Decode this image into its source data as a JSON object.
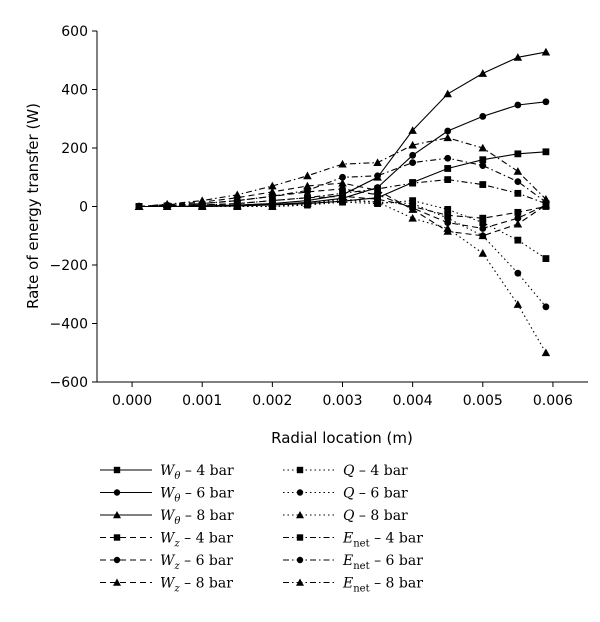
{
  "chart_data": {
    "type": "line",
    "title": "",
    "xlabel": "Radial location (m)",
    "ylabel": "Rate of energy transfer (W)",
    "xlim": [
      -0.0005,
      0.0065
    ],
    "ylim": [
      -600,
      600
    ],
    "x_ticks": [
      "0.000",
      "0.001",
      "0.002",
      "0.003",
      "0.004",
      "0.005",
      "0.006"
    ],
    "x_tick_values": [
      0,
      0.001,
      0.002,
      0.003,
      0.004,
      0.005,
      0.006
    ],
    "y_ticks": [
      "600",
      "400",
      "200",
      "0",
      "−200",
      "−400",
      "−600"
    ],
    "y_tick_values": [
      600,
      400,
      200,
      0,
      -200,
      -400,
      -600
    ],
    "grid": false,
    "legend_placement": "bottom",
    "series": [
      {
        "name": "W_θ – 4 bar",
        "sym": "W",
        "sub": "θ",
        "label": "– 4 bar",
        "dash": "solid",
        "marker": "square",
        "x": [
          0.0001,
          0.0005,
          0.001,
          0.0015,
          0.002,
          0.0025,
          0.003,
          0.0035,
          0.004,
          0.0045,
          0.005,
          0.0055,
          0.0059
        ],
        "y": [
          0,
          0,
          0,
          2,
          5,
          10,
          18,
          30,
          82,
          130,
          160,
          180,
          187
        ]
      },
      {
        "name": "W_θ – 6 bar",
        "sym": "W",
        "sub": "θ",
        "label": "– 6 bar",
        "dash": "solid",
        "marker": "circle",
        "x": [
          0.0001,
          0.0005,
          0.001,
          0.0015,
          0.002,
          0.0025,
          0.003,
          0.0035,
          0.004,
          0.0045,
          0.005,
          0.0055,
          0.0059
        ],
        "y": [
          0,
          0,
          0,
          3,
          7,
          14,
          28,
          65,
          175,
          258,
          308,
          347,
          358
        ]
      },
      {
        "name": "W_θ – 8 bar",
        "sym": "W",
        "sub": "θ",
        "label": "– 8 bar",
        "dash": "solid",
        "marker": "triangle",
        "x": [
          0.0001,
          0.0005,
          0.001,
          0.0015,
          0.002,
          0.0025,
          0.003,
          0.0035,
          0.004,
          0.0045,
          0.005,
          0.0055,
          0.0059
        ],
        "y": [
          0,
          0,
          2,
          5,
          10,
          20,
          40,
          100,
          260,
          385,
          455,
          510,
          528
        ]
      },
      {
        "name": "W_z – 4 bar",
        "sym": "W",
        "sub": "z",
        "label": "– 4 bar",
        "dash": "dash",
        "marker": "square",
        "x": [
          0.0001,
          0.0005,
          0.001,
          0.0015,
          0.002,
          0.0025,
          0.003,
          0.0035,
          0.004,
          0.0045,
          0.005,
          0.0055,
          0.0059
        ],
        "y": [
          0,
          2,
          5,
          10,
          20,
          30,
          35,
          25,
          0,
          -30,
          -40,
          -20,
          0
        ]
      },
      {
        "name": "W_z – 6 bar",
        "sym": "W",
        "sub": "z",
        "label": "– 6 bar",
        "dash": "dash",
        "marker": "circle",
        "x": [
          0.0001,
          0.0005,
          0.001,
          0.0015,
          0.002,
          0.0025,
          0.003,
          0.0035,
          0.004,
          0.0045,
          0.005,
          0.0055,
          0.0059
        ],
        "y": [
          0,
          4,
          10,
          20,
          35,
          50,
          60,
          40,
          -5,
          -55,
          -75,
          -40,
          5
        ]
      },
      {
        "name": "W_z – 8 bar",
        "sym": "W",
        "sub": "z",
        "label": "– 8 bar",
        "dash": "dash",
        "marker": "triangle",
        "x": [
          0.0001,
          0.0005,
          0.001,
          0.0015,
          0.002,
          0.0025,
          0.003,
          0.0035,
          0.004,
          0.0045,
          0.005,
          0.0055,
          0.0059
        ],
        "y": [
          0,
          6,
          15,
          30,
          50,
          70,
          80,
          55,
          -10,
          -85,
          -100,
          -60,
          5
        ]
      },
      {
        "name": "Q – 4 bar",
        "sym": "Q",
        "sub": "",
        "label": "– 4 bar",
        "dash": "dot",
        "marker": "square",
        "x": [
          0.0001,
          0.0005,
          0.001,
          0.0015,
          0.002,
          0.0025,
          0.003,
          0.0035,
          0.004,
          0.0045,
          0.005,
          0.0055,
          0.0059
        ],
        "y": [
          0,
          0,
          0,
          0,
          0,
          5,
          15,
          10,
          20,
          -10,
          -55,
          -115,
          -178
        ]
      },
      {
        "name": "Q – 6 bar",
        "sym": "Q",
        "sub": "",
        "label": "– 6 bar",
        "dash": "dot",
        "marker": "circle",
        "x": [
          0.0001,
          0.0005,
          0.001,
          0.0015,
          0.002,
          0.0025,
          0.003,
          0.0035,
          0.004,
          0.0045,
          0.005,
          0.0055,
          0.0059
        ],
        "y": [
          0,
          0,
          0,
          0,
          0,
          5,
          20,
          15,
          10,
          -40,
          -100,
          -228,
          -343
        ]
      },
      {
        "name": "Q – 8 bar",
        "sym": "Q",
        "sub": "",
        "label": "– 8 bar",
        "dash": "dot",
        "marker": "triangle",
        "x": [
          0.0001,
          0.0005,
          0.001,
          0.0015,
          0.002,
          0.0025,
          0.003,
          0.0035,
          0.004,
          0.0045,
          0.005,
          0.0055,
          0.0059
        ],
        "y": [
          0,
          0,
          0,
          0,
          0,
          10,
          25,
          15,
          -40,
          -75,
          -160,
          -335,
          -500
        ]
      },
      {
        "name": "E_net – 4 bar",
        "sym": "E",
        "sub": "net",
        "label": "– 4 bar",
        "dash": "dashdot",
        "marker": "square",
        "x": [
          0.0001,
          0.0005,
          0.001,
          0.0015,
          0.002,
          0.0025,
          0.003,
          0.0035,
          0.004,
          0.0045,
          0.005,
          0.0055,
          0.0059
        ],
        "y": [
          0,
          2,
          5,
          10,
          20,
          30,
          45,
          60,
          80,
          92,
          75,
          45,
          10
        ]
      },
      {
        "name": "E_net – 6 bar",
        "sym": "E",
        "sub": "net",
        "label": "– 6 bar",
        "dash": "dashdot",
        "marker": "circle",
        "x": [
          0.0001,
          0.0005,
          0.001,
          0.0015,
          0.002,
          0.0025,
          0.003,
          0.0035,
          0.004,
          0.0045,
          0.005,
          0.0055,
          0.0059
        ],
        "y": [
          0,
          4,
          10,
          20,
          35,
          55,
          100,
          105,
          150,
          165,
          140,
          85,
          15
        ]
      },
      {
        "name": "E_net – 8 bar",
        "sym": "E",
        "sub": "net",
        "label": "– 8 bar",
        "dash": "dashdot",
        "marker": "triangle",
        "x": [
          0.0001,
          0.0005,
          0.001,
          0.0015,
          0.002,
          0.0025,
          0.003,
          0.0035,
          0.004,
          0.0045,
          0.005,
          0.0055,
          0.0059
        ],
        "y": [
          0,
          8,
          20,
          40,
          70,
          105,
          145,
          150,
          210,
          235,
          200,
          120,
          25
        ]
      }
    ]
  }
}
